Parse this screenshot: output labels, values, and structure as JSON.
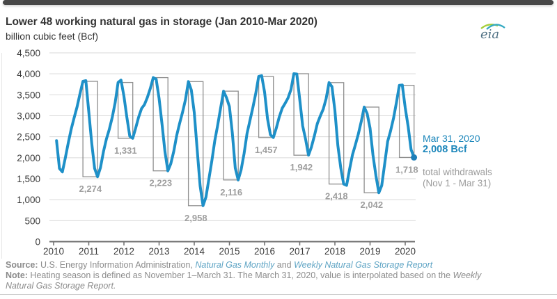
{
  "header": {
    "title": "Lower 48 working natural gas in storage (Jan 2010-Mar 2020)",
    "subtitle": "billion cubic feet (Bcf)",
    "logo_text": "eia"
  },
  "colors": {
    "line": "#1e90c8",
    "dot": "#1d7fb8",
    "annotation_blue": "#1d87bb",
    "bracket": "#8f8f8f",
    "bracket_label": "#9e9e9e",
    "grid": "#d9d9d9",
    "axis": "#6e6e6e",
    "axis_label": "#3a3a3a",
    "title_text": "#333333",
    "footer_text": "#8c8c8c",
    "footer_link": "#5fa4c4",
    "top_bar": "#484848"
  },
  "chart_data": {
    "type": "line",
    "title": "Lower 48 working natural gas in storage (Jan 2010-Mar 2020)",
    "xlabel": "",
    "ylabel": "billion cubic feet (Bcf)",
    "ylim": [
      0,
      4500
    ],
    "grid": true,
    "legend_position": "none",
    "yticks": [
      {
        "v": 0,
        "label": "0"
      },
      {
        "v": 500,
        "label": "500"
      },
      {
        "v": 1000,
        "label": "1,000"
      },
      {
        "v": 1500,
        "label": "1,500"
      },
      {
        "v": 2000,
        "label": "2,000"
      },
      {
        "v": 2500,
        "label": "2,500"
      },
      {
        "v": 3000,
        "label": "3,000"
      },
      {
        "v": 3500,
        "label": "3,500"
      },
      {
        "v": 4000,
        "label": "4,000"
      },
      {
        "v": 4500,
        "label": "4,500"
      }
    ],
    "x_years": [
      {
        "v": 2010,
        "label": "2010"
      },
      {
        "v": 2011,
        "label": "2011"
      },
      {
        "v": 2012,
        "label": "2012"
      },
      {
        "v": 2013,
        "label": "2013"
      },
      {
        "v": 2014,
        "label": "2014"
      },
      {
        "v": 2015,
        "label": "2015"
      },
      {
        "v": 2016,
        "label": "2016"
      },
      {
        "v": 2017,
        "label": "2017"
      },
      {
        "v": 2018,
        "label": "2018"
      },
      {
        "v": 2019,
        "label": "2019"
      },
      {
        "v": 2020,
        "label": "2020"
      }
    ],
    "series": [
      {
        "name": "Lower 48 working natural gas in storage (monthly, Bcf)",
        "points": [
          [
            2010.083,
            2406
          ],
          [
            2010.167,
            1744
          ],
          [
            2010.25,
            1662
          ],
          [
            2010.333,
            1995
          ],
          [
            2010.417,
            2357
          ],
          [
            2010.5,
            2684
          ],
          [
            2010.583,
            2948
          ],
          [
            2010.667,
            3212
          ],
          [
            2010.75,
            3526
          ],
          [
            2010.833,
            3821
          ],
          [
            2010.917,
            3837
          ],
          [
            2011,
            3097
          ],
          [
            2011.083,
            2353
          ],
          [
            2011.167,
            1745
          ],
          [
            2011.25,
            1547
          ],
          [
            2011.333,
            1763
          ],
          [
            2011.417,
            2145
          ],
          [
            2011.5,
            2443
          ],
          [
            2011.583,
            2671
          ],
          [
            2011.667,
            2961
          ],
          [
            2011.75,
            3312
          ],
          [
            2011.833,
            3794
          ],
          [
            2011.917,
            3850
          ],
          [
            2012,
            3467
          ],
          [
            2012.083,
            2966
          ],
          [
            2012.167,
            2513
          ],
          [
            2012.25,
            2463
          ],
          [
            2012.333,
            2704
          ],
          [
            2012.417,
            2967
          ],
          [
            2012.5,
            3173
          ],
          [
            2012.583,
            3263
          ],
          [
            2012.667,
            3440
          ],
          [
            2012.75,
            3653
          ],
          [
            2012.833,
            3910
          ],
          [
            2012.917,
            3873
          ],
          [
            2013,
            3413
          ],
          [
            2013.083,
            2803
          ],
          [
            2013.167,
            2148
          ],
          [
            2013.25,
            1687
          ],
          [
            2013.333,
            1857
          ],
          [
            2013.417,
            2155
          ],
          [
            2013.5,
            2533
          ],
          [
            2013.583,
            2813
          ],
          [
            2013.667,
            3085
          ],
          [
            2013.75,
            3386
          ],
          [
            2013.833,
            3815
          ],
          [
            2013.917,
            3614
          ],
          [
            2014,
            3080
          ],
          [
            2014.083,
            2193
          ],
          [
            2014.167,
            1333
          ],
          [
            2014.25,
            857
          ],
          [
            2014.333,
            1060
          ],
          [
            2014.417,
            1499
          ],
          [
            2014.5,
            1929
          ],
          [
            2014.583,
            2397
          ],
          [
            2014.667,
            2781
          ],
          [
            2014.75,
            3188
          ],
          [
            2014.833,
            3586
          ],
          [
            2014.917,
            3432
          ],
          [
            2015,
            3220
          ],
          [
            2015.083,
            2588
          ],
          [
            2015.167,
            1756
          ],
          [
            2015.25,
            1470
          ],
          [
            2015.333,
            1710
          ],
          [
            2015.417,
            2102
          ],
          [
            2015.5,
            2577
          ],
          [
            2015.583,
            2880
          ],
          [
            2015.667,
            3197
          ],
          [
            2015.75,
            3538
          ],
          [
            2015.833,
            3938
          ],
          [
            2015.917,
            3956
          ],
          [
            2016,
            3566
          ],
          [
            2016.083,
            2934
          ],
          [
            2016.167,
            2548
          ],
          [
            2016.25,
            2481
          ],
          [
            2016.333,
            2703
          ],
          [
            2016.417,
            2972
          ],
          [
            2016.5,
            3179
          ],
          [
            2016.583,
            3294
          ],
          [
            2016.667,
            3424
          ],
          [
            2016.75,
            3624
          ],
          [
            2016.833,
            4003
          ],
          [
            2016.917,
            3995
          ],
          [
            2017,
            3390
          ],
          [
            2017.083,
            2760
          ],
          [
            2017.167,
            2442
          ],
          [
            2017.25,
            2061
          ],
          [
            2017.333,
            2256
          ],
          [
            2017.417,
            2525
          ],
          [
            2017.5,
            2816
          ],
          [
            2017.583,
            2990
          ],
          [
            2017.667,
            3155
          ],
          [
            2017.75,
            3408
          ],
          [
            2017.833,
            3790
          ],
          [
            2017.917,
            3693
          ],
          [
            2018,
            3126
          ],
          [
            2018.083,
            2296
          ],
          [
            2018.167,
            1760
          ],
          [
            2018.25,
            1372
          ],
          [
            2018.333,
            1341
          ],
          [
            2018.417,
            1725
          ],
          [
            2018.5,
            2074
          ],
          [
            2018.583,
            2307
          ],
          [
            2018.667,
            2568
          ],
          [
            2018.75,
            2866
          ],
          [
            2018.833,
            3208
          ],
          [
            2018.917,
            3054
          ],
          [
            2019,
            2705
          ],
          [
            2019.083,
            2062
          ],
          [
            2019.167,
            1576
          ],
          [
            2019.25,
            1166
          ],
          [
            2019.333,
            1339
          ],
          [
            2019.417,
            1867
          ],
          [
            2019.5,
            2390
          ],
          [
            2019.583,
            2634
          ],
          [
            2019.667,
            2940
          ],
          [
            2019.75,
            3316
          ],
          [
            2019.833,
            3726
          ],
          [
            2019.917,
            3732
          ],
          [
            2020,
            3192
          ],
          [
            2020.083,
            2746
          ],
          [
            2020.167,
            2195
          ],
          [
            2020.25,
            2008
          ]
        ]
      }
    ],
    "end_point": {
      "x": 2020.25,
      "value": 2008,
      "date": "Mar 31, 2020",
      "label": "2,008 Bcf"
    },
    "withdrawal_brackets": [
      {
        "start_year": 2010,
        "nov1": 3821,
        "mar31": 1547,
        "label": "2,274"
      },
      {
        "start_year": 2011,
        "nov1": 3794,
        "mar31": 2463,
        "label": "1,331"
      },
      {
        "start_year": 2012,
        "nov1": 3910,
        "mar31": 1687,
        "label": "2,223"
      },
      {
        "start_year": 2013,
        "nov1": 3815,
        "mar31": 857,
        "label": "2,958"
      },
      {
        "start_year": 2014,
        "nov1": 3586,
        "mar31": 1470,
        "label": "2,116"
      },
      {
        "start_year": 2015,
        "nov1": 3938,
        "mar31": 2481,
        "label": "1,457"
      },
      {
        "start_year": 2016,
        "nov1": 4003,
        "mar31": 2061,
        "label": "1,942"
      },
      {
        "start_year": 2017,
        "nov1": 3790,
        "mar31": 1372,
        "label": "2,418"
      },
      {
        "start_year": 2018,
        "nov1": 3208,
        "mar31": 1166,
        "label": "2,042"
      },
      {
        "start_year": 2019,
        "nov1": 3726,
        "mar31": 2008,
        "label": "1,718"
      }
    ]
  },
  "annotation": {
    "date": "Mar 31, 2020",
    "value": "2,008 Bcf",
    "caption_line1": "total withdrawals",
    "caption_line2": "(Nov 1 - Mar 31)"
  },
  "footer": {
    "line1": [
      {
        "t": "Source: ",
        "b": 1
      },
      {
        "t": "U.S. Energy Information Administration, "
      },
      {
        "t": "Natural Gas Monthly",
        "i": 1,
        "link": 1
      },
      {
        "t": " and "
      },
      {
        "t": "Weekly Natural Gas Storage Report",
        "i": 1,
        "link": 1
      }
    ],
    "line2": [
      {
        "t": "Note: ",
        "b": 1
      },
      {
        "t": "Heating season is defined as November 1–March 31. The March 31, 2020, value is interpolated based on the "
      },
      {
        "t": "Weekly",
        "i": 1
      }
    ],
    "line3": [
      {
        "t": "Natural Gas Storage Report.",
        "i": 1
      }
    ]
  }
}
